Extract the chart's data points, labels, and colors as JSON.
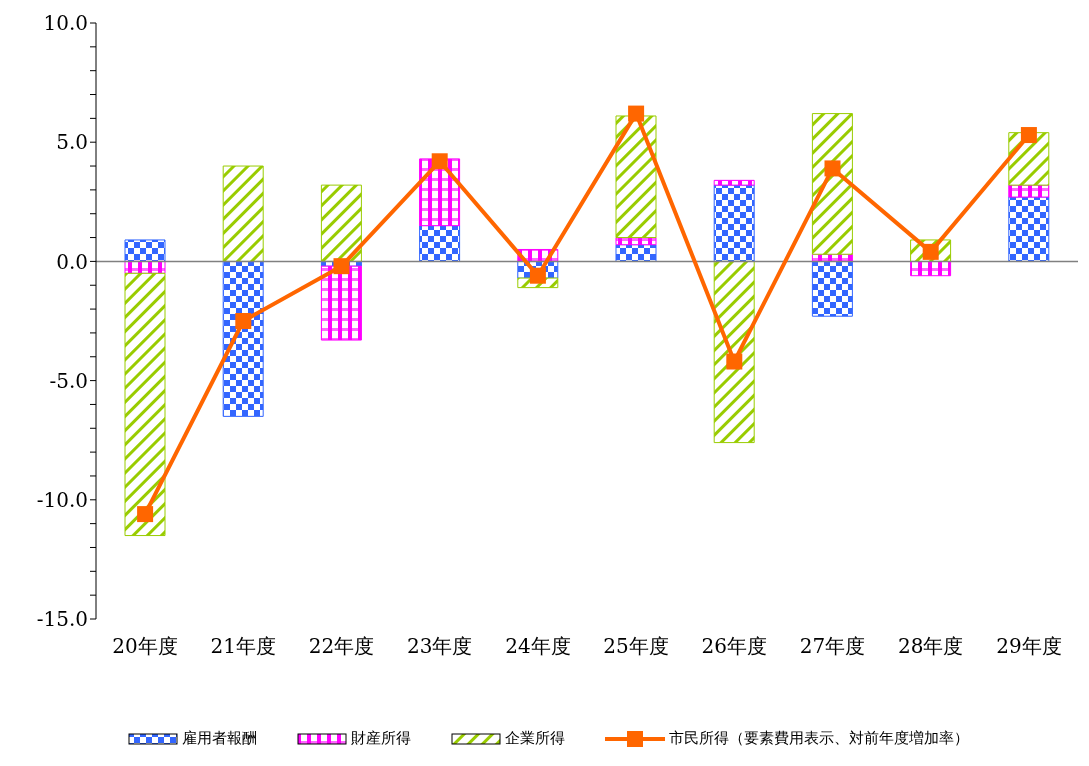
{
  "chart_data": {
    "type": "bar",
    "stacked": true,
    "categories": [
      "20年度",
      "21年度",
      "22年度",
      "23年度",
      "24年度",
      "25年度",
      "26年度",
      "27年度",
      "28年度",
      "29年度"
    ],
    "series": [
      {
        "name": "雇用者報酬",
        "color": "#3366ff",
        "values": [
          0.9,
          -6.5,
          -0.2,
          1.5,
          -0.7,
          0.7,
          3.2,
          -2.3,
          0,
          2.7
        ]
      },
      {
        "name": "財産所得",
        "color": "#ff00ff",
        "values": [
          -0.5,
          0,
          -3.1,
          2.8,
          0.5,
          0.3,
          0.2,
          0.3,
          -0.6,
          0.5
        ]
      },
      {
        "name": "企業所得",
        "color": "#99cc00",
        "values": [
          -11.0,
          4.0,
          3.2,
          0,
          -0.4,
          5.1,
          -7.6,
          5.9,
          0.9,
          2.2
        ]
      },
      {
        "name": "市民所得（要素費用表示、対前年度増加率）",
        "type": "line",
        "color": "#ff6600",
        "marker": "square",
        "values": [
          -10.6,
          -2.5,
          -0.2,
          4.2,
          -0.6,
          6.2,
          -4.2,
          3.9,
          0.4,
          5.3
        ]
      }
    ],
    "ylim": [
      -15,
      10
    ],
    "yticks": [
      {
        "value": -15,
        "label": "-15.0"
      },
      {
        "value": -14,
        "label": null
      },
      {
        "value": -13,
        "label": null
      },
      {
        "value": -12,
        "label": null
      },
      {
        "value": -11,
        "label": null
      },
      {
        "value": -10,
        "label": "-10.0"
      },
      {
        "value": -9,
        "label": null
      },
      {
        "value": -8,
        "label": null
      },
      {
        "value": -7,
        "label": null
      },
      {
        "value": -6,
        "label": null
      },
      {
        "value": -5,
        "label": "-5.0"
      },
      {
        "value": -4,
        "label": null
      },
      {
        "value": -3,
        "label": null
      },
      {
        "value": -2,
        "label": null
      },
      {
        "value": -1,
        "label": null
      },
      {
        "value": 0,
        "label": "0.0"
      },
      {
        "value": 1,
        "label": null
      },
      {
        "value": 2,
        "label": null
      },
      {
        "value": 3,
        "label": null
      },
      {
        "value": 4,
        "label": null
      },
      {
        "value": 5,
        "label": "5.0"
      },
      {
        "value": 6,
        "label": null
      },
      {
        "value": 7,
        "label": null
      },
      {
        "value": 8,
        "label": null
      },
      {
        "value": 9,
        "label": null
      },
      {
        "value": 10,
        "label": "10.0"
      }
    ],
    "ref_lines": [
      {
        "axis": "y",
        "value": 0,
        "color": "#808080"
      }
    ],
    "grid": false,
    "legend": "bottom"
  }
}
